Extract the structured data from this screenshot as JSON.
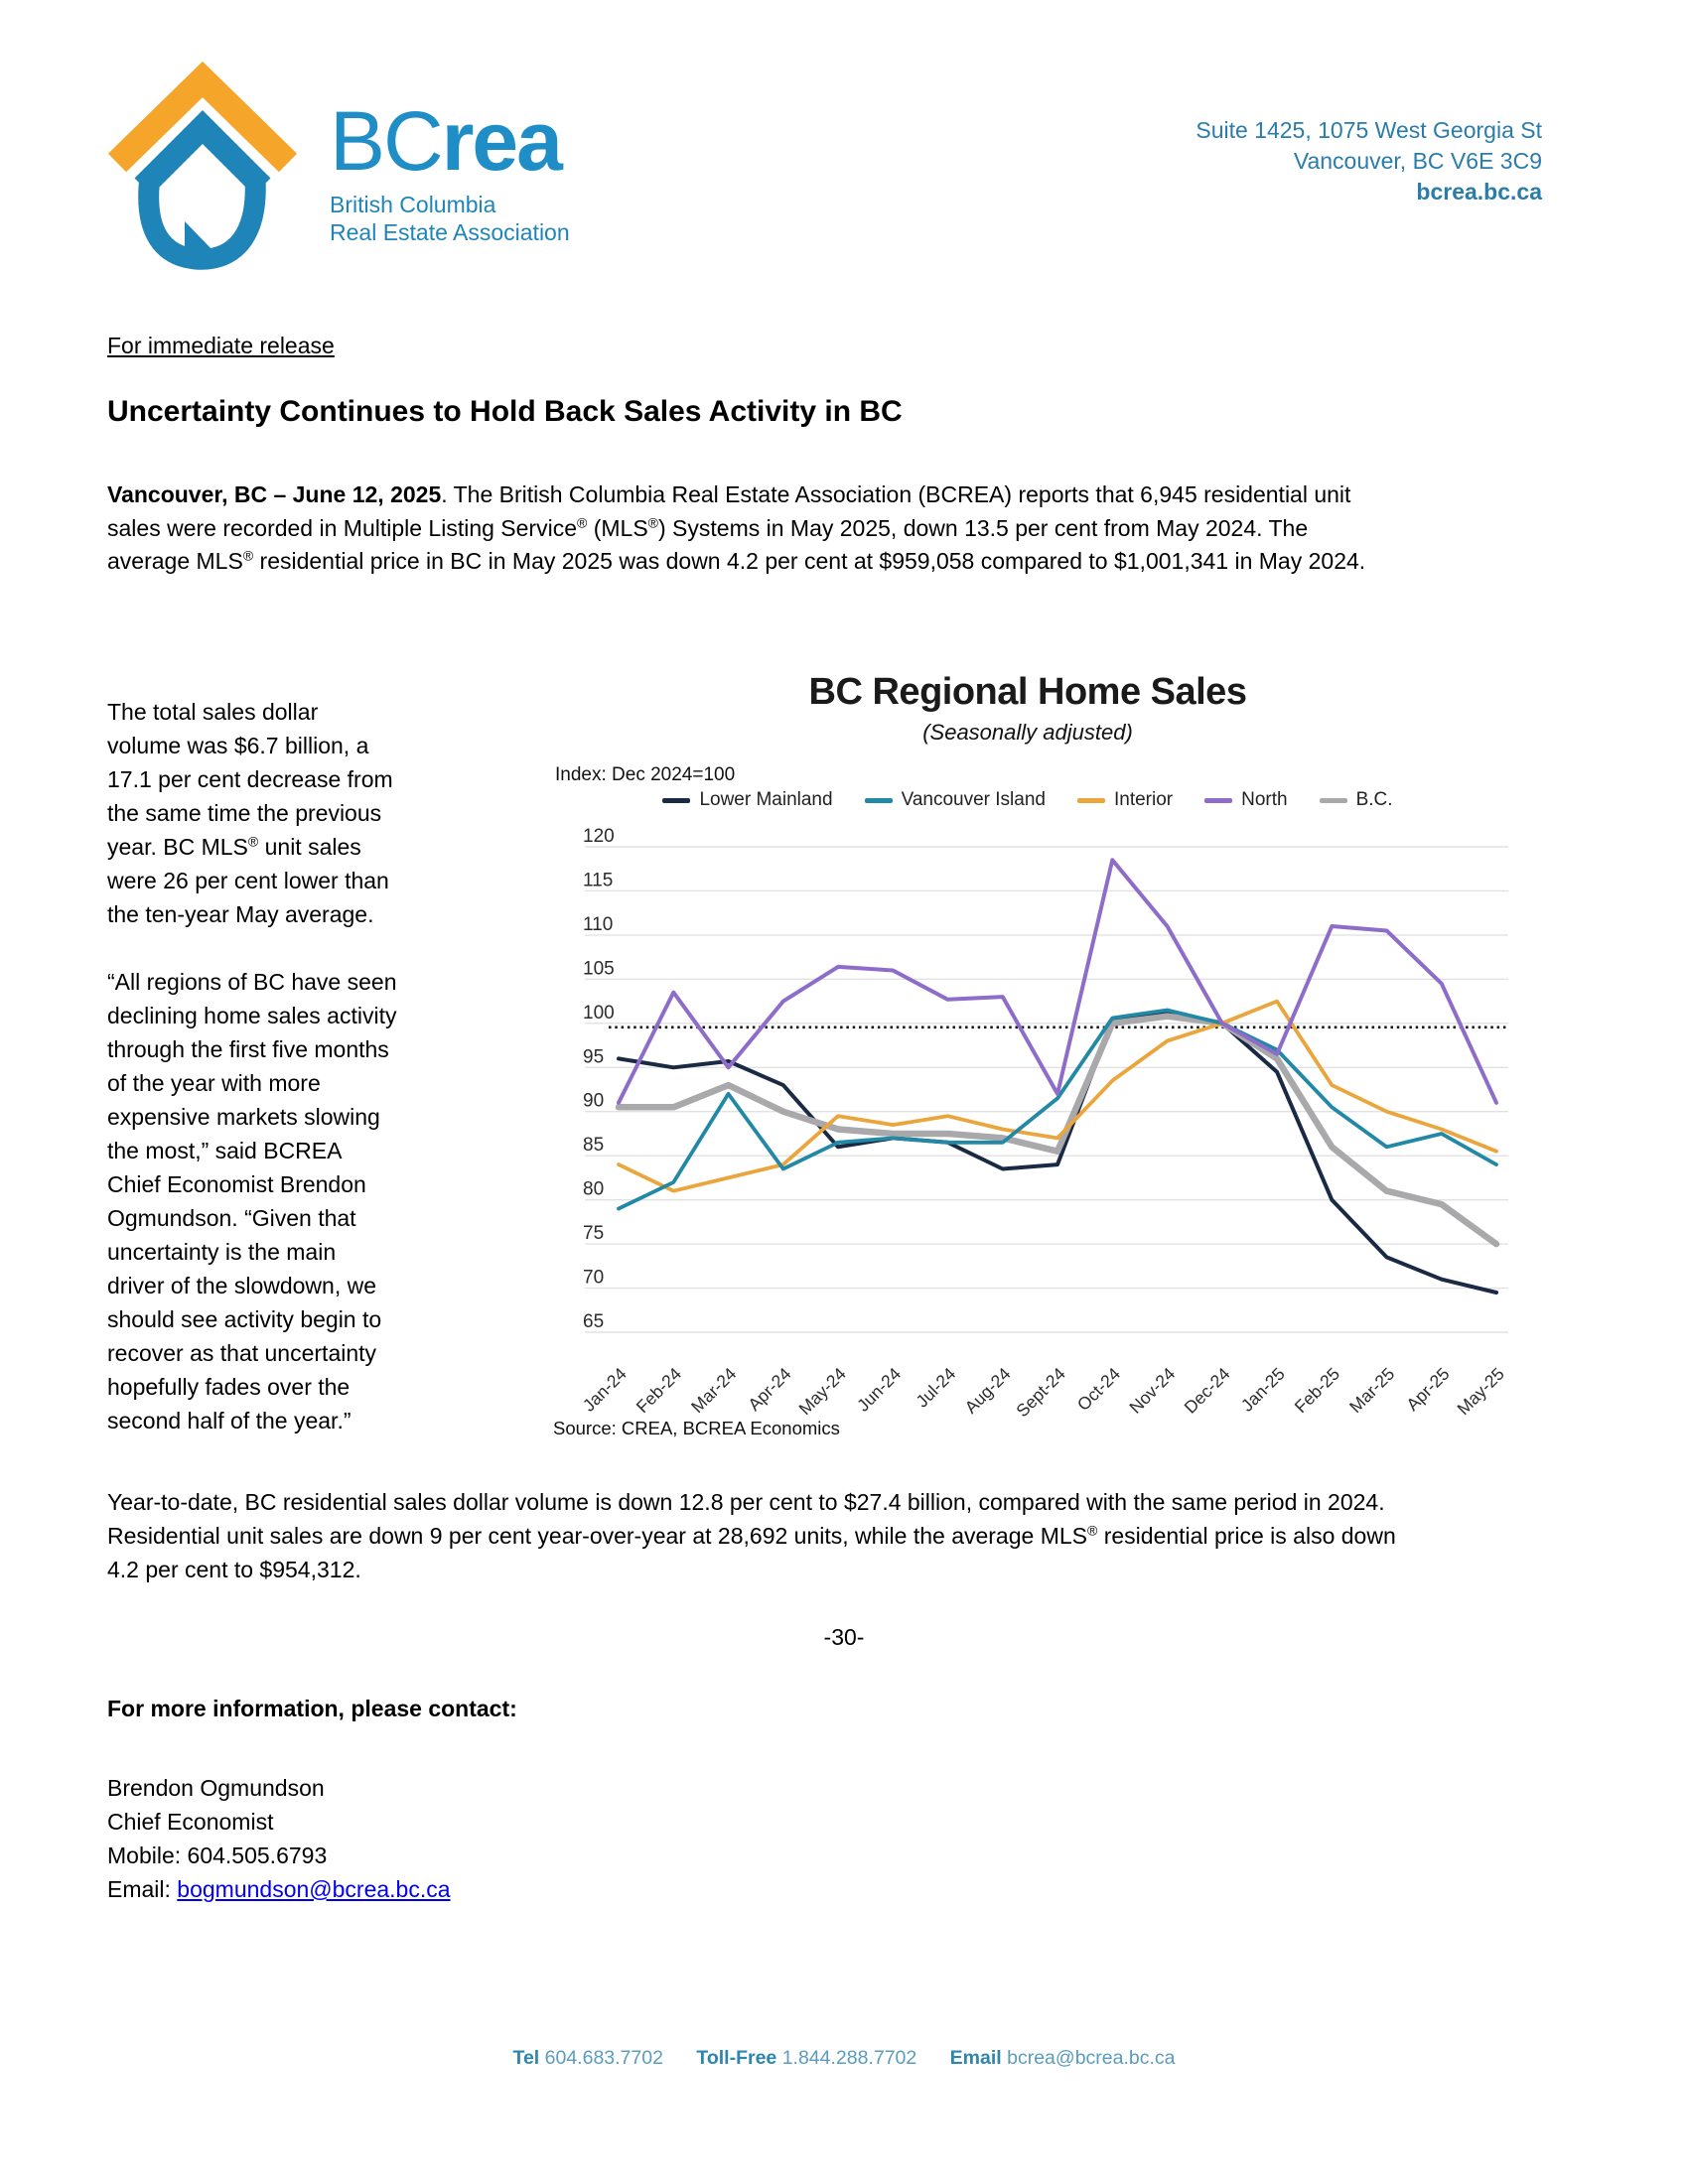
{
  "header": {
    "logo": {
      "brand_bc": "BC",
      "brand_rea": "rea",
      "sub_line1": "British Columbia",
      "sub_line2": "Real Estate Association",
      "brand_blue": "#1f8ec6",
      "brand_orange": "#f5a62a"
    },
    "address": {
      "line1": "Suite 1425, 1075 West Georgia St",
      "line2": "Vancouver, BC V6E 3C9",
      "website": "bcrea.bc.ca"
    }
  },
  "release_label": "For immediate release",
  "headline": "Uncertainty Continues to Hold Back Sales Activity in BC",
  "lead": {
    "bold": "Vancouver, BC – June 12, 2025",
    "t1": ". The British Columbia Real Estate Association (BCREA) reports that 6,945 residential unit sales were recorded in Multiple Listing Service",
    "sup1": "®",
    "t2": " (MLS",
    "sup2": "®",
    "t3": ") Systems in May 2025, down 13.5 per cent from May 2024. The average MLS",
    "sup3": "®",
    "t4": " residential price in BC in May 2025 was down 4.2 per cent at $959,058 compared to $1,001,341 in May 2024."
  },
  "left_column": {
    "p1_t1": "The total sales dollar volume was $6.7 billion, a 17.1 per cent decrease from the same time the previous year. BC MLS",
    "p1_sup": "®",
    "p1_t2": " unit sales were 26 per cent lower than the ten-year May average.",
    "p2": "“All regions of BC have seen declining home sales activity through the first five months of the year with more expensive markets slowing the most,” said BCREA Chief Economist Brendon Ogmundson. “Given that uncertainty is the main driver of the slowdown, we should see activity begin to recover as that uncertainty hopefully fades over the second half of the year.”"
  },
  "chart_data": {
    "type": "line",
    "title": "BC Regional Home Sales",
    "subtitle": "(Seasonally adjusted)",
    "index_note": "Index: Dec 2024=100",
    "source": "Source: CREA, BCREA Economics",
    "x": [
      "Jan-24",
      "Feb-24",
      "Mar-24",
      "Apr-24",
      "May-24",
      "Jun-24",
      "Jul-24",
      "Aug-24",
      "Sept-24",
      "Oct-24",
      "Nov-24",
      "Dec-24",
      "Jan-25",
      "Feb-25",
      "Mar-25",
      "Apr-25",
      "May-25"
    ],
    "ylim": [
      65,
      120
    ],
    "ytick_step": 5,
    "grid": true,
    "legend_position": "top",
    "reference_line": 100,
    "series": [
      {
        "name": "Lower Mainland",
        "color": "#1b2a44",
        "width": 4,
        "values": [
          96,
          95,
          95.7,
          93,
          86,
          87,
          86.5,
          83.5,
          84,
          100.3,
          101.4,
          100,
          94.5,
          80,
          73.5,
          71,
          69.5
        ]
      },
      {
        "name": "Vancouver Island",
        "color": "#2189a6",
        "width": 3.8,
        "values": [
          79,
          82,
          92,
          83.5,
          86.5,
          87,
          86.5,
          86.5,
          91.5,
          100.6,
          101.5,
          100,
          97,
          90.5,
          86,
          87.5,
          84
        ]
      },
      {
        "name": "Interior",
        "color": "#eaa63c",
        "width": 3.8,
        "values": [
          84,
          81,
          82.5,
          84,
          89.5,
          88.5,
          89.5,
          88,
          87,
          93.5,
          98,
          100,
          102.5,
          93,
          90,
          88,
          85.5
        ]
      },
      {
        "name": "North",
        "color": "#8e6cc9",
        "width": 4,
        "values": [
          91,
          103.5,
          95,
          102.5,
          106.4,
          106,
          102.7,
          103,
          92,
          118.5,
          111,
          100,
          96.5,
          111,
          110.5,
          104.5,
          91
        ]
      },
      {
        "name": "B.C.",
        "color": "#a9a9ab",
        "width": 6.5,
        "values": [
          90.5,
          90.5,
          93,
          90,
          88,
          87.5,
          87.5,
          87,
          85.5,
          100,
          100.8,
          100,
          96,
          86,
          81,
          79.5,
          75
        ]
      }
    ],
    "grid_color": "#e2e2e2",
    "tick_color": "#2b2b2b"
  },
  "ytd": {
    "t1": "Year-to-date, BC residential sales dollar volume is down 12.8 per cent to $27.4 billion, compared with the same period in 2024. Residential unit sales are down 9 per cent year-over-year at 28,692 units, while the average MLS",
    "sup": "®",
    "t2": " residential price is also down 4.2 per cent to $954,312."
  },
  "end_mark": "-30-",
  "contact": {
    "heading": "For more information, please contact:",
    "name": "Brendon Ogmundson",
    "title": "Chief Economist",
    "mobile_label": "Mobile: ",
    "mobile": "604.505.6793",
    "email_label": "Email: ",
    "email": "bogmundson@bcrea.bc.ca"
  },
  "footer": {
    "tel_label": "Tel",
    "tel": "604.683.7702",
    "tollfree_label": "Toll-Free",
    "tollfree": "1.844.288.7702",
    "email_label": "Email",
    "email": "bcrea@bcrea.bc.ca"
  }
}
